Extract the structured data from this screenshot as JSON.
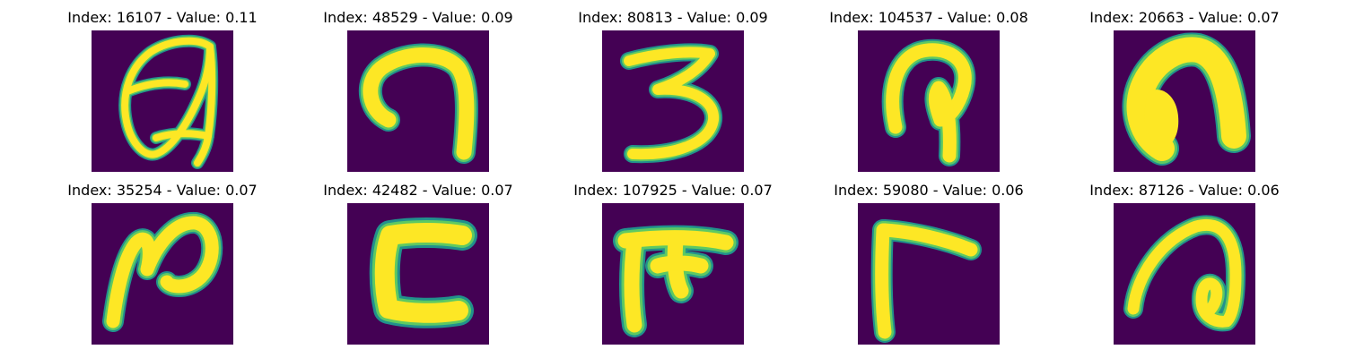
{
  "colors": {
    "background": "#440154",
    "stroke_core": "#fde725",
    "stroke_mid": "#5ec962",
    "stroke_edge": "#21918c"
  },
  "panels": [
    {
      "title": "Index: 16107 - Value: 0.11",
      "glyph": "curly-a-loop"
    },
    {
      "title": "Index: 48529 - Value: 0.09",
      "glyph": "hook-n"
    },
    {
      "title": "Index: 80813 - Value: 0.09",
      "glyph": "digit-three"
    },
    {
      "title": "Index: 104537 - Value: 0.08",
      "glyph": "hooked-loop"
    },
    {
      "title": "Index: 20663 - Value: 0.07",
      "glyph": "thick-arch"
    },
    {
      "title": "Index: 35254 - Value: 0.07",
      "glyph": "script-n"
    },
    {
      "title": "Index: 42482 - Value: 0.07",
      "glyph": "bracket-c"
    },
    {
      "title": "Index: 107925 - Value: 0.07",
      "glyph": "tee-shape"
    },
    {
      "title": "Index: 59080 - Value: 0.06",
      "glyph": "gamma-shape"
    },
    {
      "title": "Index: 87126 - Value: 0.06",
      "glyph": "curled-arch"
    }
  ]
}
